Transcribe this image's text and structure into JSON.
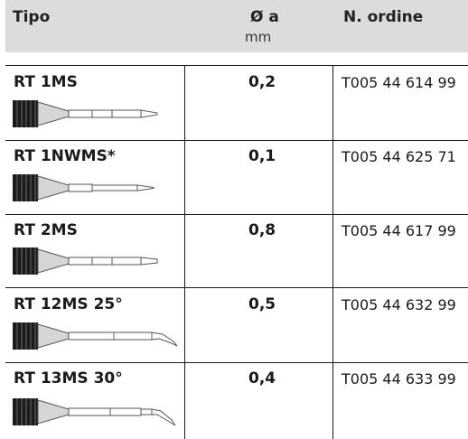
{
  "header": {
    "type_label": "Tipo",
    "diameter_label": "Ø a",
    "diameter_unit": "mm",
    "order_label": "N. ordine"
  },
  "rows": [
    {
      "name": "RT 1MS",
      "diameter": "0,2",
      "order_no": "T005 44 614 99",
      "tip_shape": "straight-tip-icon"
    },
    {
      "name": "RT 1NWMS*",
      "diameter": "0,1",
      "order_no": "T005 44 625 71",
      "tip_shape": "straight-needle-tip-icon"
    },
    {
      "name": "RT 2MS",
      "diameter": "0,8",
      "order_no": "T005 44 617 99",
      "tip_shape": "straight-tip-icon"
    },
    {
      "name": "RT 12MS 25°",
      "diameter": "0,5",
      "order_no": "T005 44 632 99",
      "tip_shape": "bent-25-tip-icon"
    },
    {
      "name": "RT 13MS 30°",
      "diameter": "0,4",
      "order_no": "T005 44 633 99",
      "tip_shape": "bent-30-tip-icon"
    }
  ]
}
